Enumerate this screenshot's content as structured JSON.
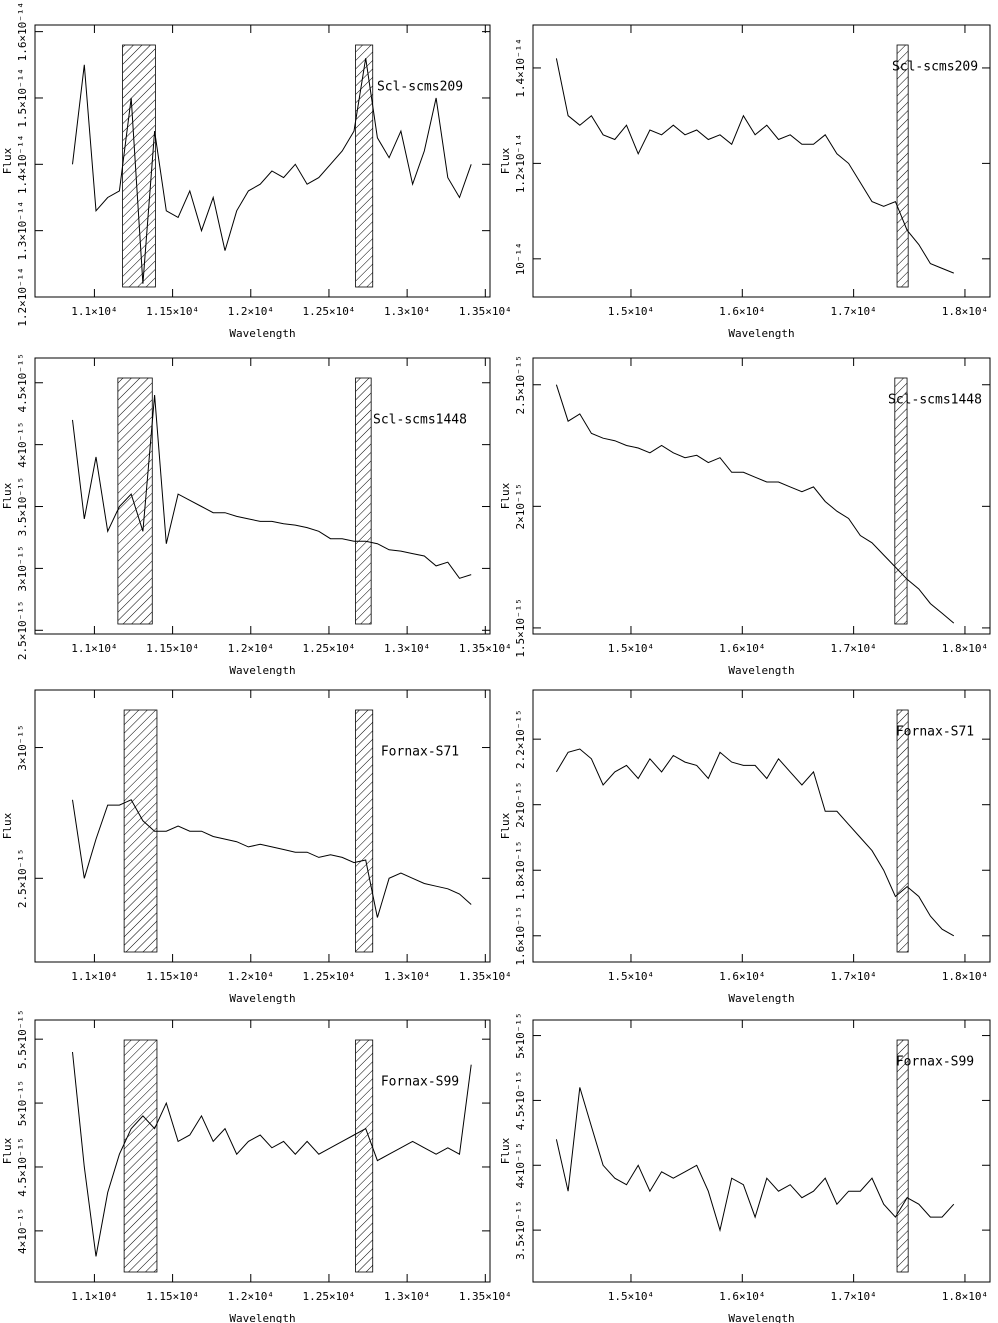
{
  "chart_data": [
    {
      "type": "line",
      "annotation": "Scl-scms209",
      "y_label": "Flux",
      "x_label": "Wavelength",
      "color": "#000000",
      "xlim": [
        10620,
        13530
      ],
      "ylim": [
        1.2e-14,
        1.61e-14
      ],
      "xticks": [
        {
          "value": 11000,
          "label": "1.1×10⁴"
        },
        {
          "value": 11500,
          "label": "1.15×10⁴"
        },
        {
          "value": 12000,
          "label": "1.2×10⁴"
        },
        {
          "value": 12500,
          "label": "1.25×10⁴"
        },
        {
          "value": 13000,
          "label": "1.3×10⁴"
        },
        {
          "value": 13500,
          "label": "1.35×10⁴"
        }
      ],
      "yticks": [
        {
          "value": 1.2e-14,
          "label": "1.2×10⁻¹⁴"
        },
        {
          "value": 1.3e-14,
          "label": "1.3×10⁻¹⁴"
        },
        {
          "value": 1.4e-14,
          "label": "1.4×10⁻¹⁴"
        },
        {
          "value": 1.5e-14,
          "label": "1.5×10⁻¹⁴"
        },
        {
          "value": 1.6e-14,
          "label": "1.6×10⁻¹⁴"
        }
      ],
      "shaded_regions": [
        [
          11180,
          11390
        ],
        [
          12670,
          12780
        ]
      ],
      "x": [
        10860,
        10935,
        11010,
        11085,
        11160,
        11235,
        11310,
        11385,
        11460,
        11535,
        11610,
        11685,
        11760,
        11835,
        11910,
        11985,
        12060,
        12135,
        12210,
        12285,
        12360,
        12435,
        12510,
        12585,
        12660,
        12735,
        12810,
        12885,
        12960,
        13035,
        13110,
        13185,
        13260,
        13335,
        13410
      ],
      "values": [
        1.4e-14,
        1.55e-14,
        1.33e-14,
        1.35e-14,
        1.36e-14,
        1.5e-14,
        1.22e-14,
        1.45e-14,
        1.33e-14,
        1.32e-14,
        1.36e-14,
        1.3e-14,
        1.35e-14,
        1.27e-14,
        1.33e-14,
        1.36e-14,
        1.37e-14,
        1.39e-14,
        1.38e-14,
        1.4e-14,
        1.37e-14,
        1.38e-14,
        1.4e-14,
        1.42e-14,
        1.45e-14,
        1.56e-14,
        1.44e-14,
        1.41e-14,
        1.45e-14,
        1.37e-14,
        1.42e-14,
        1.5e-14,
        1.38e-14,
        1.35e-14,
        1.4e-14
      ]
    },
    {
      "type": "line",
      "annotation": "Scl-scms209",
      "y_label": "Flux",
      "x_label": "Wavelength",
      "color": "#000000",
      "xlim": [
        14120,
        18225
      ],
      "ylim": [
        9.2e-15,
        1.49e-14
      ],
      "xticks": [
        {
          "value": 15000,
          "label": "1.5×10⁴"
        },
        {
          "value": 16000,
          "label": "1.6×10⁴"
        },
        {
          "value": 17000,
          "label": "1.7×10⁴"
        },
        {
          "value": 18000,
          "label": "1.8×10⁴"
        }
      ],
      "yticks": [
        {
          "value": 1e-14,
          "label": "10⁻¹⁴"
        },
        {
          "value": 1.2e-14,
          "label": "1.2×10⁻¹⁴"
        },
        {
          "value": 1.4e-14,
          "label": "1.4×10⁻¹⁴"
        }
      ],
      "shaded_regions": [
        [
          17390,
          17490
        ]
      ],
      "x": [
        14330,
        14435,
        14540,
        14645,
        14750,
        14855,
        14960,
        15065,
        15170,
        15275,
        15380,
        15485,
        15590,
        15695,
        15800,
        15905,
        16010,
        16115,
        16220,
        16325,
        16430,
        16535,
        16640,
        16745,
        16850,
        16955,
        17060,
        17165,
        17270,
        17375,
        17480,
        17585,
        17690,
        17795,
        17900
      ],
      "values": [
        1.42e-14,
        1.3e-14,
        1.28e-14,
        1.3e-14,
        1.26e-14,
        1.25e-14,
        1.28e-14,
        1.22e-14,
        1.27e-14,
        1.26e-14,
        1.28e-14,
        1.26e-14,
        1.27e-14,
        1.25e-14,
        1.26e-14,
        1.24e-14,
        1.3e-14,
        1.26e-14,
        1.28e-14,
        1.25e-14,
        1.26e-14,
        1.24e-14,
        1.24e-14,
        1.26e-14,
        1.22e-14,
        1.2e-14,
        1.16e-14,
        1.12e-14,
        1.11e-14,
        1.12e-14,
        1.06e-14,
        1.03e-14,
        9.9e-15,
        9.8e-15,
        9.7e-15
      ]
    },
    {
      "type": "line",
      "annotation": "Scl-scms1448",
      "y_label": "Flux",
      "x_label": "Wavelength",
      "color": "#000000",
      "xlim": [
        10620,
        13530
      ],
      "ylim": [
        2.47e-15,
        4.7e-15
      ],
      "xticks": [
        {
          "value": 11000,
          "label": "1.1×10⁴"
        },
        {
          "value": 11500,
          "label": "1.15×10⁴"
        },
        {
          "value": 12000,
          "label": "1.2×10⁴"
        },
        {
          "value": 12500,
          "label": "1.25×10⁴"
        },
        {
          "value": 13000,
          "label": "1.3×10⁴"
        },
        {
          "value": 13500,
          "label": "1.35×10⁴"
        }
      ],
      "yticks": [
        {
          "value": 2.5e-15,
          "label": "2.5×10⁻¹⁵"
        },
        {
          "value": 3e-15,
          "label": "3×10⁻¹⁵"
        },
        {
          "value": 3.5e-15,
          "label": "3.5×10⁻¹⁵"
        },
        {
          "value": 4e-15,
          "label": "4×10⁻¹⁵"
        },
        {
          "value": 4.5e-15,
          "label": "4.5×10⁻¹⁵"
        }
      ],
      "shaded_regions": [
        [
          11150,
          11370
        ],
        [
          12670,
          12770
        ]
      ],
      "x": [
        10860,
        10935,
        11010,
        11085,
        11160,
        11235,
        11310,
        11385,
        11460,
        11535,
        11610,
        11685,
        11760,
        11835,
        11910,
        11985,
        12060,
        12135,
        12210,
        12285,
        12360,
        12435,
        12510,
        12585,
        12660,
        12735,
        12810,
        12885,
        12960,
        13035,
        13110,
        13185,
        13260,
        13335,
        13410
      ],
      "values": [
        4.2e-15,
        3.4e-15,
        3.9e-15,
        3.3e-15,
        3.5e-15,
        3.6e-15,
        3.3e-15,
        4.4e-15,
        3.2e-15,
        3.6e-15,
        3.55e-15,
        3.5e-15,
        3.45e-15,
        3.45e-15,
        3.42e-15,
        3.4e-15,
        3.38e-15,
        3.38e-15,
        3.36e-15,
        3.35e-15,
        3.33e-15,
        3.3e-15,
        3.24e-15,
        3.24e-15,
        3.22e-15,
        3.22e-15,
        3.2e-15,
        3.15e-15,
        3.14e-15,
        3.12e-15,
        3.1e-15,
        3.02e-15,
        3.05e-15,
        2.92e-15,
        2.95e-15
      ]
    },
    {
      "type": "line",
      "annotation": "Scl-scms1448",
      "y_label": "Flux",
      "x_label": "Wavelength",
      "color": "#000000",
      "xlim": [
        14120,
        18225
      ],
      "ylim": [
        1.475e-15,
        2.61e-15
      ],
      "xticks": [
        {
          "value": 15000,
          "label": "1.5×10⁴"
        },
        {
          "value": 16000,
          "label": "1.6×10⁴"
        },
        {
          "value": 17000,
          "label": "1.7×10⁴"
        },
        {
          "value": 18000,
          "label": "1.8×10⁴"
        }
      ],
      "yticks": [
        {
          "value": 1.5e-15,
          "label": "1.5×10⁻¹⁵"
        },
        {
          "value": 2e-15,
          "label": "2×10⁻¹⁵"
        },
        {
          "value": 2.5e-15,
          "label": "2.5×10⁻¹⁵"
        }
      ],
      "shaded_regions": [
        [
          17370,
          17480
        ]
      ],
      "x": [
        14330,
        14435,
        14540,
        14645,
        14750,
        14855,
        14960,
        15065,
        15170,
        15275,
        15380,
        15485,
        15590,
        15695,
        15800,
        15905,
        16010,
        16115,
        16220,
        16325,
        16430,
        16535,
        16640,
        16745,
        16850,
        16955,
        17060,
        17165,
        17270,
        17375,
        17480,
        17585,
        17690,
        17795,
        17900
      ],
      "values": [
        2.5e-15,
        2.35e-15,
        2.38e-15,
        2.3e-15,
        2.28e-15,
        2.27e-15,
        2.25e-15,
        2.24e-15,
        2.22e-15,
        2.25e-15,
        2.22e-15,
        2.2e-15,
        2.21e-15,
        2.18e-15,
        2.2e-15,
        2.14e-15,
        2.14e-15,
        2.12e-15,
        2.1e-15,
        2.1e-15,
        2.08e-15,
        2.06e-15,
        2.08e-15,
        2.02e-15,
        1.98e-15,
        1.95e-15,
        1.88e-15,
        1.85e-15,
        1.8e-15,
        1.75e-15,
        1.7e-15,
        1.66e-15,
        1.6e-15,
        1.56e-15,
        1.52e-15
      ]
    },
    {
      "type": "line",
      "annotation": "Fornax-S71",
      "y_label": "Flux",
      "x_label": "Wavelength",
      "color": "#000000",
      "xlim": [
        10620,
        13530
      ],
      "ylim": [
        2.18e-15,
        3.22e-15
      ],
      "xticks": [
        {
          "value": 11000,
          "label": "1.1×10⁴"
        },
        {
          "value": 11500,
          "label": "1.15×10⁴"
        },
        {
          "value": 12000,
          "label": "1.2×10⁴"
        },
        {
          "value": 12500,
          "label": "1.25×10⁴"
        },
        {
          "value": 13000,
          "label": "1.3×10⁴"
        },
        {
          "value": 13500,
          "label": "1.35×10⁴"
        }
      ],
      "yticks": [
        {
          "value": 2.5e-15,
          "label": "2.5×10⁻¹⁵"
        },
        {
          "value": 3e-15,
          "label": "3×10⁻¹⁵"
        }
      ],
      "shaded_regions": [
        [
          11190,
          11400
        ],
        [
          12670,
          12780
        ]
      ],
      "x": [
        10860,
        10935,
        11010,
        11085,
        11160,
        11235,
        11310,
        11385,
        11460,
        11535,
        11610,
        11685,
        11760,
        11835,
        11910,
        11985,
        12060,
        12135,
        12210,
        12285,
        12360,
        12435,
        12510,
        12585,
        12660,
        12735,
        12810,
        12885,
        12960,
        13035,
        13110,
        13185,
        13260,
        13335,
        13410
      ],
      "values": [
        2.8e-15,
        2.5e-15,
        2.65e-15,
        2.78e-15,
        2.78e-15,
        2.8e-15,
        2.72e-15,
        2.68e-15,
        2.68e-15,
        2.7e-15,
        2.68e-15,
        2.68e-15,
        2.66e-15,
        2.65e-15,
        2.64e-15,
        2.62e-15,
        2.63e-15,
        2.62e-15,
        2.61e-15,
        2.6e-15,
        2.6e-15,
        2.58e-15,
        2.59e-15,
        2.58e-15,
        2.56e-15,
        2.57e-15,
        2.35e-15,
        2.5e-15,
        2.52e-15,
        2.5e-15,
        2.48e-15,
        2.47e-15,
        2.46e-15,
        2.44e-15,
        2.4e-15
      ]
    },
    {
      "type": "line",
      "annotation": "Fornax-S71",
      "y_label": "Flux",
      "x_label": "Wavelength",
      "color": "#000000",
      "xlim": [
        14120,
        18225
      ],
      "ylim": [
        1.52e-15,
        2.35e-15
      ],
      "xticks": [
        {
          "value": 15000,
          "label": "1.5×10⁴"
        },
        {
          "value": 16000,
          "label": "1.6×10⁴"
        },
        {
          "value": 17000,
          "label": "1.7×10⁴"
        },
        {
          "value": 18000,
          "label": "1.8×10⁴"
        }
      ],
      "yticks": [
        {
          "value": 1.6e-15,
          "label": "1.6×10⁻¹⁵"
        },
        {
          "value": 1.8e-15,
          "label": "1.8×10⁻¹⁵"
        },
        {
          "value": 2e-15,
          "label": "2×10⁻¹⁵"
        },
        {
          "value": 2.2e-15,
          "label": "2.2×10⁻¹⁵"
        }
      ],
      "shaded_regions": [
        [
          17390,
          17490
        ]
      ],
      "x": [
        14330,
        14435,
        14540,
        14645,
        14750,
        14855,
        14960,
        15065,
        15170,
        15275,
        15380,
        15485,
        15590,
        15695,
        15800,
        15905,
        16010,
        16115,
        16220,
        16325,
        16430,
        16535,
        16640,
        16745,
        16850,
        16955,
        17060,
        17165,
        17270,
        17375,
        17480,
        17585,
        17690,
        17795,
        17900
      ],
      "values": [
        2.1e-15,
        2.16e-15,
        2.17e-15,
        2.14e-15,
        2.06e-15,
        2.1e-15,
        2.12e-15,
        2.08e-15,
        2.14e-15,
        2.1e-15,
        2.15e-15,
        2.13e-15,
        2.12e-15,
        2.08e-15,
        2.16e-15,
        2.13e-15,
        2.12e-15,
        2.12e-15,
        2.08e-15,
        2.14e-15,
        2.1e-15,
        2.06e-15,
        2.1e-15,
        1.98e-15,
        1.98e-15,
        1.94e-15,
        1.9e-15,
        1.86e-15,
        1.8e-15,
        1.72e-15,
        1.75e-15,
        1.72e-15,
        1.66e-15,
        1.62e-15,
        1.6e-15
      ]
    },
    {
      "type": "line",
      "annotation": "Fornax-S99",
      "y_label": "Flux",
      "x_label": "Wavelength",
      "color": "#000000",
      "xlim": [
        10620,
        13530
      ],
      "ylim": [
        3.6e-15,
        5.65e-15
      ],
      "xticks": [
        {
          "value": 11000,
          "label": "1.1×10⁴"
        },
        {
          "value": 11500,
          "label": "1.15×10⁴"
        },
        {
          "value": 12000,
          "label": "1.2×10⁴"
        },
        {
          "value": 12500,
          "label": "1.25×10⁴"
        },
        {
          "value": 13000,
          "label": "1.3×10⁴"
        },
        {
          "value": 13500,
          "label": "1.35×10⁴"
        }
      ],
      "yticks": [
        {
          "value": 4e-15,
          "label": "4×10⁻¹⁵"
        },
        {
          "value": 4.5e-15,
          "label": "4.5×10⁻¹⁵"
        },
        {
          "value": 5e-15,
          "label": "5×10⁻¹⁵"
        },
        {
          "value": 5.5e-15,
          "label": "5.5×10⁻¹⁵"
        }
      ],
      "shaded_regions": [
        [
          11190,
          11400
        ],
        [
          12670,
          12780
        ]
      ],
      "x": [
        10860,
        10935,
        11010,
        11085,
        11160,
        11235,
        11310,
        11385,
        11460,
        11535,
        11610,
        11685,
        11760,
        11835,
        11910,
        11985,
        12060,
        12135,
        12210,
        12285,
        12360,
        12435,
        12510,
        12585,
        12660,
        12735,
        12810,
        12885,
        12960,
        13035,
        13110,
        13185,
        13260,
        13335,
        13410
      ],
      "values": [
        5.4e-15,
        4.5e-15,
        3.8e-15,
        4.3e-15,
        4.6e-15,
        4.8e-15,
        4.9e-15,
        4.8e-15,
        5e-15,
        4.7e-15,
        4.75e-15,
        4.9e-15,
        4.7e-15,
        4.8e-15,
        4.6e-15,
        4.7e-15,
        4.75e-15,
        4.65e-15,
        4.7e-15,
        4.6e-15,
        4.7e-15,
        4.6e-15,
        4.65e-15,
        4.7e-15,
        4.75e-15,
        4.8e-15,
        4.55e-15,
        4.6e-15,
        4.65e-15,
        4.7e-15,
        4.65e-15,
        4.6e-15,
        4.65e-15,
        4.6e-15,
        5.3e-15
      ]
    },
    {
      "type": "line",
      "annotation": "Fornax-S99",
      "y_label": "Flux",
      "x_label": "Wavelength",
      "color": "#000000",
      "xlim": [
        14120,
        18225
      ],
      "ylim": [
        3.1e-15,
        5.12e-15
      ],
      "xticks": [
        {
          "value": 15000,
          "label": "1.5×10⁴"
        },
        {
          "value": 16000,
          "label": "1.6×10⁴"
        },
        {
          "value": 17000,
          "label": "1.7×10⁴"
        },
        {
          "value": 18000,
          "label": "1.8×10⁴"
        }
      ],
      "yticks": [
        {
          "value": 3.5e-15,
          "label": "3.5×10⁻¹⁵"
        },
        {
          "value": 4e-15,
          "label": "4×10⁻¹⁵"
        },
        {
          "value": 4.5e-15,
          "label": "4.5×10⁻¹⁵"
        },
        {
          "value": 5e-15,
          "label": "5×10⁻¹⁵"
        }
      ],
      "shaded_regions": [
        [
          17390,
          17490
        ]
      ],
      "x": [
        14330,
        14435,
        14540,
        14645,
        14750,
        14855,
        14960,
        15065,
        15170,
        15275,
        15380,
        15485,
        15590,
        15695,
        15800,
        15905,
        16010,
        16115,
        16220,
        16325,
        16430,
        16535,
        16640,
        16745,
        16850,
        16955,
        17060,
        17165,
        17270,
        17375,
        17480,
        17585,
        17690,
        17795,
        17900
      ],
      "values": [
        4.2e-15,
        3.8e-15,
        4.6e-15,
        4.3e-15,
        4e-15,
        3.9e-15,
        3.85e-15,
        4e-15,
        3.8e-15,
        3.95e-15,
        3.9e-15,
        3.95e-15,
        4e-15,
        3.8e-15,
        3.5e-15,
        3.9e-15,
        3.85e-15,
        3.6e-15,
        3.9e-15,
        3.8e-15,
        3.85e-15,
        3.75e-15,
        3.8e-15,
        3.9e-15,
        3.7e-15,
        3.8e-15,
        3.8e-15,
        3.9e-15,
        3.7e-15,
        3.6e-15,
        3.75e-15,
        3.7e-15,
        3.6e-15,
        3.6e-15,
        3.7e-15
      ]
    }
  ]
}
